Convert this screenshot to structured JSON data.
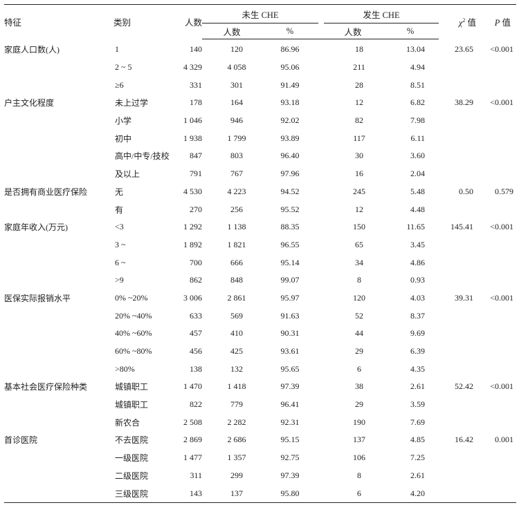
{
  "header": {
    "feature": "特征",
    "category": "类别",
    "count": "人数",
    "no_che": "未生 CHE",
    "che": "发生 CHE",
    "sub_count": "人数",
    "sub_pct": "%",
    "chi_symbol": "χ",
    "chi_sup": "2",
    "chi_label": "值",
    "p_symbol": "P",
    "p_label": "值"
  },
  "groups": [
    {
      "feature": "家庭人口数(人)",
      "chi2": "23.65",
      "p": "<0.001",
      "rows": [
        [
          "1",
          "140",
          "120",
          "86.96",
          "18",
          "13.04"
        ],
        [
          "2 ~ 5",
          "4 329",
          "4 058",
          "95.06",
          "211",
          "4.94"
        ],
        [
          "≥6",
          "331",
          "301",
          "91.49",
          "28",
          "8.51"
        ]
      ]
    },
    {
      "feature": "户主文化程度",
      "chi2": "38.29",
      "p": "<0.001",
      "rows": [
        [
          "未上过学",
          "178",
          "164",
          "93.18",
          "12",
          "6.82"
        ],
        [
          "小学",
          "1 046",
          "946",
          "92.02",
          "82",
          "7.98"
        ],
        [
          "初中",
          "1 938",
          "1 799",
          "93.89",
          "117",
          "6.11"
        ],
        [
          "高中/中专/技校",
          "847",
          "803",
          "96.40",
          "30",
          "3.60"
        ],
        [
          "及以上",
          "791",
          "767",
          "97.96",
          "16",
          "2.04"
        ]
      ]
    },
    {
      "feature": "是否拥有商业医疗保险",
      "chi2": "0.50",
      "p": "0.579",
      "rows": [
        [
          "无",
          "4 530",
          "4 223",
          "94.52",
          "245",
          "5.48"
        ],
        [
          "有",
          "270",
          "256",
          "95.52",
          "12",
          "4.48"
        ]
      ]
    },
    {
      "feature": "家庭年收入(万元)",
      "chi2": "145.41",
      "p": "<0.001",
      "rows": [
        [
          "<3",
          "1 292",
          "1 138",
          "88.35",
          "150",
          "11.65"
        ],
        [
          "3 ~",
          "1 892",
          "1 821",
          "96.55",
          "65",
          "3.45"
        ],
        [
          "6 ~",
          "700",
          "666",
          "95.14",
          "34",
          "4.86"
        ],
        [
          ">9",
          "862",
          "848",
          "99.07",
          "8",
          "0.93"
        ]
      ]
    },
    {
      "feature": "医保实际报销水平",
      "chi2": "39.31",
      "p": "<0.001",
      "rows": [
        [
          "0% ~20%",
          "3 006",
          "2 861",
          "95.97",
          "120",
          "4.03"
        ],
        [
          "20% ~40%",
          "633",
          "569",
          "91.63",
          "52",
          "8.37"
        ],
        [
          "40% ~60%",
          "457",
          "410",
          "90.31",
          "44",
          "9.69"
        ],
        [
          "60% ~80%",
          "456",
          "425",
          "93.61",
          "29",
          "6.39"
        ],
        [
          ">80%",
          "138",
          "132",
          "95.65",
          "6",
          "4.35"
        ]
      ]
    },
    {
      "feature": "基本社会医疗保险种类",
      "chi2": "52.42",
      "p": "<0.001",
      "rows": [
        [
          "城镇职工",
          "1 470",
          "1 418",
          "97.39",
          "38",
          "2.61"
        ],
        [
          "城镇职工",
          "822",
          "779",
          "96.41",
          "29",
          "3.59"
        ],
        [
          "新农合",
          "2 508",
          "2 282",
          "92.31",
          "190",
          "7.69"
        ]
      ]
    },
    {
      "feature": "首诊医院",
      "chi2": "16.42",
      "p": "0.001",
      "rows": [
        [
          "不去医院",
          "2 869",
          "2 686",
          "95.15",
          "137",
          "4.85"
        ],
        [
          "一级医院",
          "1 477",
          "1 357",
          "92.75",
          "106",
          "7.25"
        ],
        [
          "二级医院",
          "311",
          "299",
          "97.39",
          "8",
          "2.61"
        ],
        [
          "三级医院",
          "143",
          "137",
          "95.80",
          "6",
          "4.20"
        ]
      ]
    }
  ]
}
